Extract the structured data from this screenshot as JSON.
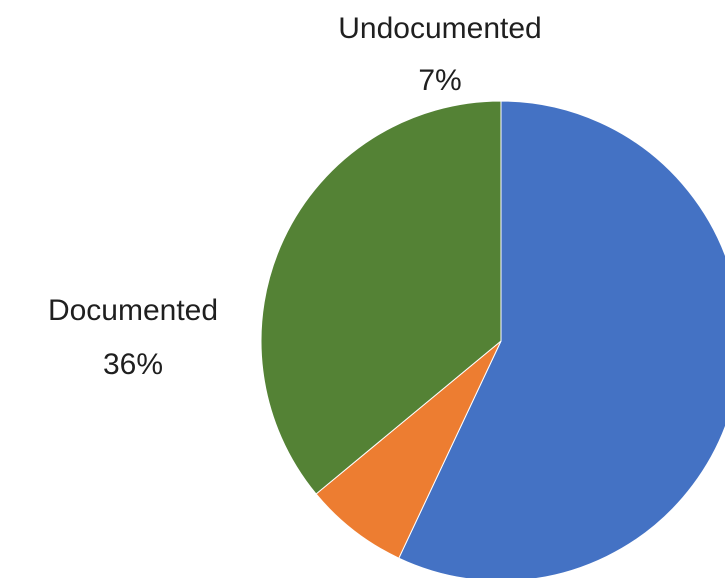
{
  "chart_data": {
    "type": "pie",
    "title": "",
    "categories": [
      "",
      "Undocumented",
      "Documented"
    ],
    "values": [
      57,
      7,
      36
    ],
    "value_labels": [
      "",
      "7%",
      "36%"
    ],
    "colors": [
      "#4472C4",
      "#ED7D31",
      "#548235"
    ],
    "start": "12 o'clock",
    "direction": "clockwise",
    "legend": "none"
  }
}
